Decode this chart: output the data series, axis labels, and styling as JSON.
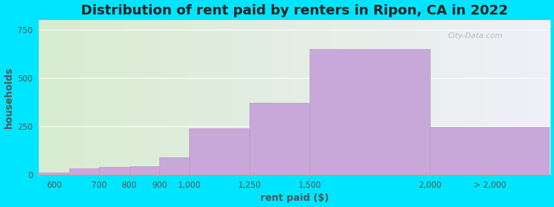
{
  "title": "Distribution of rent paid by renters in Ripon, CA in 2022",
  "xlabel": "rent paid ($)",
  "ylabel": "households",
  "bar_labels": [
    "600",
    "700",
    "800",
    "900",
    "1,000",
    "1,250",
    "1,500",
    "2,000",
    "> 2,000"
  ],
  "bar_values": [
    12,
    30,
    38,
    42,
    90,
    240,
    370,
    650,
    245
  ],
  "bar_lefts": [
    0,
    1,
    2,
    3,
    4,
    5,
    7,
    9,
    13
  ],
  "bar_widths": [
    1,
    1,
    1,
    1,
    1,
    2,
    2,
    4,
    4
  ],
  "xtick_positions": [
    0.5,
    2,
    3,
    4,
    5,
    7,
    9,
    13,
    15
  ],
  "bar_color": "#c8a8d8",
  "bar_edgecolor": "#b898c8",
  "background_color": "#00e5ff",
  "plot_bg_left": "#d8ecd0",
  "plot_bg_right": "#f0f0f8",
  "ylim": [
    0,
    800
  ],
  "yticks": [
    0,
    250,
    500,
    750
  ],
  "title_fontsize": 14,
  "axis_label_fontsize": 10,
  "tick_fontsize": 8.5,
  "watermark": "City-Data.com"
}
